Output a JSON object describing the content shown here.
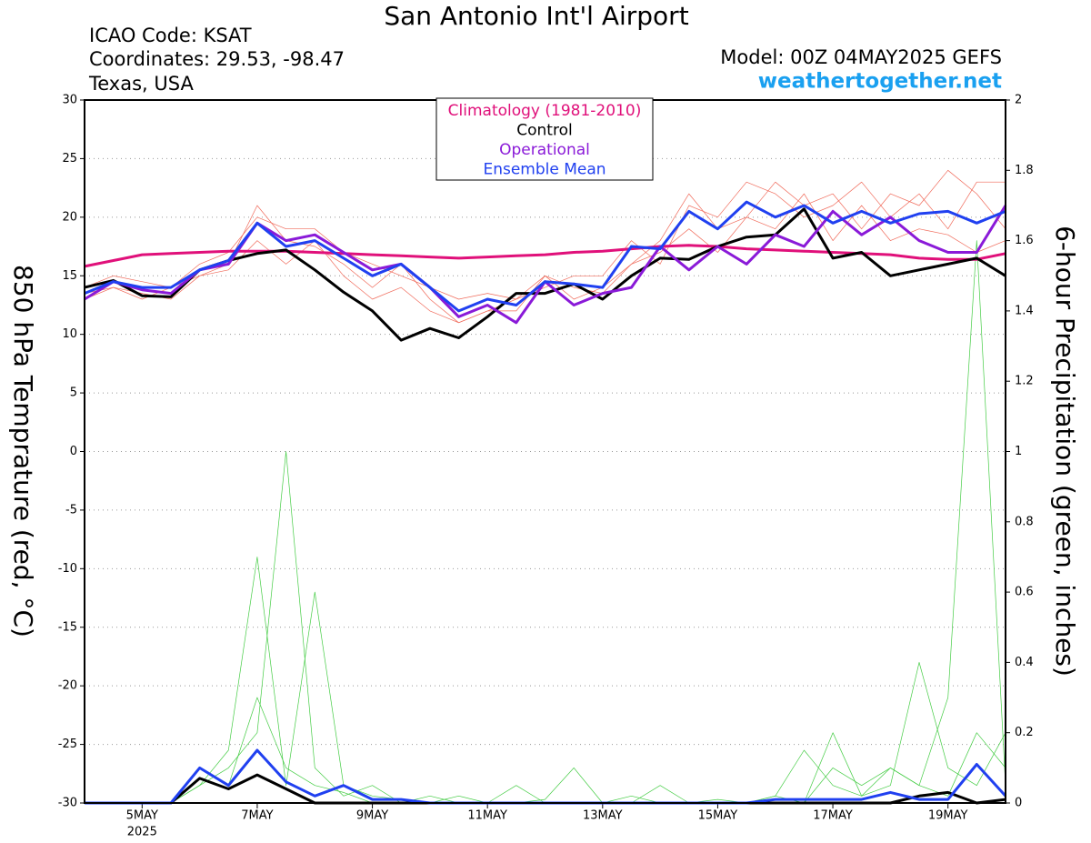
{
  "chart_data": {
    "type": "line",
    "title": "San Antonio Int'l Airport",
    "info": [
      "ICAO Code: KSAT",
      "Coordinates: 29.53, -98.47",
      "Texas, USA"
    ],
    "model": "Model: 00Z 04MAY2025 GEFS",
    "site": "weathertogether.net",
    "ylabel": "850 hPa Temprature (red, °C)",
    "y2label": "6-hour Precipitation (green, inches)",
    "x": [
      0,
      12,
      24,
      36,
      48,
      60,
      72,
      84,
      96,
      108,
      120,
      132,
      144,
      156,
      168,
      180,
      192,
      204,
      216,
      228,
      240,
      252,
      264,
      276,
      288,
      300,
      312,
      324,
      336,
      348,
      360,
      372,
      384
    ],
    "xlim": [
      0,
      384
    ],
    "xticks": [
      {
        "value": 24,
        "label": "5MAY"
      },
      {
        "value": 72,
        "label": "7MAY"
      },
      {
        "value": 120,
        "label": "9MAY"
      },
      {
        "value": 168,
        "label": "11MAY"
      },
      {
        "value": 216,
        "label": "13MAY"
      },
      {
        "value": 264,
        "label": "15MAY"
      },
      {
        "value": 312,
        "label": "17MAY"
      },
      {
        "value": 360,
        "label": "19MAY"
      }
    ],
    "x_year": "2025",
    "ylim": [
      -30,
      30
    ],
    "yticks": [
      -30,
      -25,
      -20,
      -15,
      -10,
      -5,
      0,
      5,
      10,
      15,
      20,
      25,
      30
    ],
    "y2lim": [
      0,
      2
    ],
    "y2ticks": [
      0,
      0.2,
      0.4,
      0.6,
      0.8,
      1,
      1.2,
      1.4,
      1.6,
      1.8,
      2
    ],
    "grid": true,
    "legend": "top",
    "series": [
      {
        "color": "#f06a5a",
        "axis": "y",
        "values": [
          13,
          14,
          13.5,
          13,
          15,
          16,
          21,
          18,
          17.5,
          16,
          14,
          16,
          13,
          11,
          12,
          12,
          15,
          13,
          14,
          16,
          18,
          22,
          19,
          20,
          23,
          21,
          22,
          19,
          22,
          21,
          24,
          22,
          19
        ]
      },
      {
        "color": "#f06a5a",
        "axis": "y",
        "values": [
          14,
          15,
          14.5,
          14,
          16,
          17,
          20,
          19,
          19,
          17,
          16,
          15,
          14,
          13,
          13.5,
          13,
          14,
          15,
          15,
          18,
          16,
          21,
          20,
          23,
          22,
          20,
          21,
          23,
          20,
          22,
          19,
          23,
          23
        ]
      },
      {
        "color": "#f06a5a",
        "axis": "y",
        "values": [
          13.5,
          14,
          13,
          14,
          15,
          15.5,
          18,
          16,
          18,
          15,
          13,
          14,
          12,
          11,
          12,
          13,
          15,
          14,
          13.5,
          16,
          17,
          19,
          17,
          20,
          19,
          22,
          18,
          21,
          18,
          19,
          18.5,
          17,
          18
        ]
      },
      {
        "color": "#44cc44",
        "axis": "y2",
        "values": [
          0,
          0,
          0,
          0,
          0.05,
          0.1,
          0.2,
          1.0,
          0.1,
          0.02,
          0.05,
          0,
          0,
          0,
          0,
          0,
          0,
          0,
          0,
          0,
          0,
          0,
          0,
          0,
          0,
          0,
          0.1,
          0.05,
          0.1,
          0.05,
          0.02,
          0.2,
          0.1
        ]
      },
      {
        "color": "#44cc44",
        "axis": "y2",
        "values": [
          0,
          0,
          0,
          0,
          0.1,
          0.05,
          0.3,
          0.1,
          0.05,
          0.03,
          0,
          0,
          0.02,
          0,
          0,
          0.05,
          0,
          0,
          0,
          0.02,
          0,
          0,
          0.01,
          0,
          0.02,
          0.15,
          0.05,
          0.02,
          0.1,
          0.05,
          0.3,
          1.6,
          0.05
        ]
      },
      {
        "color": "#44cc44",
        "axis": "y2",
        "values": [
          0,
          0,
          0,
          0,
          0.05,
          0.15,
          0.7,
          0.05,
          0.6,
          0.05,
          0.02,
          0.01,
          0,
          0.02,
          0,
          0,
          0.01,
          0.1,
          0,
          0,
          0.05,
          0,
          0,
          0,
          0.02,
          0,
          0.2,
          0.02,
          0.05,
          0.4,
          0.1,
          0.05,
          0.2
        ]
      },
      {
        "color": "#000000",
        "axis": "y2",
        "values": [
          0,
          0,
          0,
          0,
          0.07,
          0.04,
          0.08,
          0.04,
          0,
          0,
          0,
          0,
          0,
          0,
          0,
          0,
          0,
          0,
          0,
          0,
          0,
          0,
          0,
          0,
          0,
          0,
          0,
          0,
          0,
          0.02,
          0.03,
          0,
          0.01
        ]
      },
      {
        "color": "#2040f0",
        "axis": "y2",
        "values": [
          0,
          0,
          0,
          0,
          0.1,
          0.05,
          0.15,
          0.06,
          0.02,
          0.05,
          0.01,
          0.01,
          0,
          0,
          0,
          0,
          0,
          0,
          0,
          0,
          0,
          0,
          0,
          0,
          0.01,
          0.01,
          0.01,
          0.01,
          0.03,
          0.01,
          0.01,
          0.11,
          0.02
        ]
      },
      {
        "name": "Climatology (1981-2010)",
        "color": "#e0107a",
        "axis": "y",
        "values": [
          15.8,
          16.3,
          16.8,
          16.9,
          17,
          17.1,
          17.1,
          17.1,
          17,
          16.9,
          16.8,
          16.7,
          16.6,
          16.5,
          16.6,
          16.7,
          16.8,
          17,
          17.1,
          17.3,
          17.5,
          17.6,
          17.5,
          17.3,
          17.2,
          17.1,
          17,
          16.9,
          16.8,
          16.5,
          16.4,
          16.4,
          16.9
        ]
      },
      {
        "name": "Control",
        "color": "#000000",
        "axis": "y",
        "values": [
          14,
          14.6,
          13.3,
          13.2,
          15.5,
          16.3,
          16.9,
          17.2,
          15.5,
          13.6,
          12,
          9.5,
          10.5,
          9.7,
          11.5,
          13.5,
          13.5,
          14.3,
          13,
          15,
          16.5,
          16.4,
          17.5,
          18.3,
          18.5,
          20.7,
          16.5,
          17,
          15,
          15.5,
          16,
          16.5,
          15
        ]
      },
      {
        "name": "Operational",
        "color": "#8a1ad8",
        "axis": "y",
        "values": [
          13,
          14.5,
          13.8,
          13.5,
          15.5,
          16,
          19.5,
          18,
          18.5,
          17,
          15.5,
          16,
          14,
          11.5,
          12.5,
          11,
          14.5,
          12.5,
          13.5,
          14,
          17.5,
          15.5,
          17.5,
          16,
          18.5,
          17.5,
          20.5,
          18.5,
          20,
          18,
          17,
          17,
          21
        ]
      },
      {
        "name": "Ensemble Mean",
        "color": "#2040f0",
        "axis": "y",
        "values": [
          13.5,
          14.5,
          14,
          14,
          15.5,
          16.3,
          19.5,
          17.5,
          18,
          16.5,
          15,
          16,
          14,
          12,
          13,
          12.5,
          14.5,
          14.3,
          14,
          17.5,
          17.3,
          20.5,
          19,
          21.3,
          20,
          21,
          19.5,
          20.5,
          19.5,
          20.3,
          20.5,
          19.5,
          20.5
        ]
      }
    ]
  }
}
